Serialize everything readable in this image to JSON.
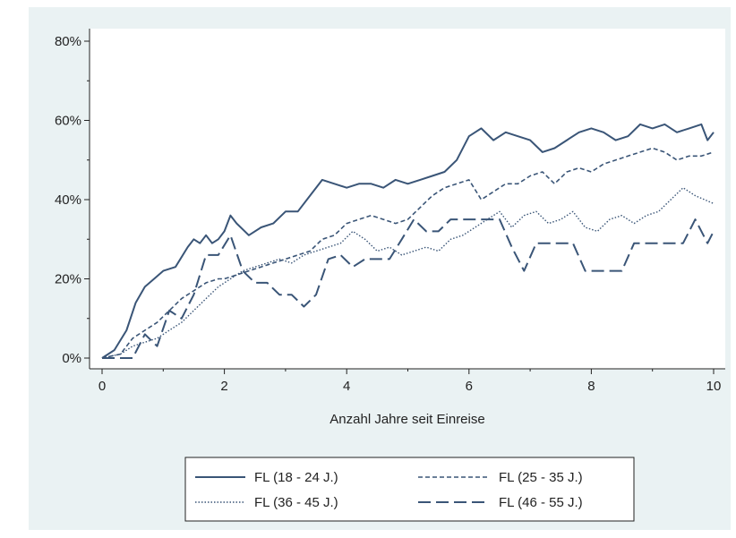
{
  "chart_data": {
    "type": "line",
    "title": "",
    "xlabel": "Anzahl Jahre seit Einreise",
    "ylabel": "",
    "xlim": [
      0,
      10
    ],
    "ylim": [
      0,
      80
    ],
    "x_ticks": [
      0,
      2,
      4,
      6,
      8,
      10
    ],
    "y_ticks": [
      0,
      20,
      40,
      60,
      80
    ],
    "x_tick_labels": [
      "0",
      "2",
      "4",
      "6",
      "8",
      "10"
    ],
    "y_tick_labels": [
      "0%",
      "20%",
      "40%",
      "60%",
      "80%"
    ],
    "grid": false,
    "legend_position": "bottom",
    "series": [
      {
        "name": "FL (18 - 24 J.)",
        "style": "solid",
        "color": "#3a5577",
        "x": [
          0,
          0.2,
          0.4,
          0.55,
          0.7,
          0.85,
          1.0,
          1.2,
          1.4,
          1.5,
          1.6,
          1.7,
          1.8,
          1.9,
          2.0,
          2.1,
          2.2,
          2.4,
          2.6,
          2.8,
          3.0,
          3.2,
          3.4,
          3.6,
          3.8,
          4.0,
          4.2,
          4.4,
          4.6,
          4.8,
          5.0,
          5.2,
          5.4,
          5.6,
          5.8,
          6.0,
          6.1,
          6.2,
          6.4,
          6.6,
          6.8,
          7.0,
          7.2,
          7.4,
          7.6,
          7.8,
          8.0,
          8.2,
          8.4,
          8.6,
          8.8,
          9.0,
          9.2,
          9.4,
          9.6,
          9.8,
          9.9,
          10.0
        ],
        "y": [
          0,
          2,
          7,
          14,
          18,
          20,
          22,
          23,
          28,
          30,
          29,
          31,
          29,
          30,
          32,
          36,
          34,
          31,
          33,
          34,
          37,
          37,
          41,
          45,
          44,
          43,
          44,
          44,
          43,
          45,
          44,
          45,
          46,
          47,
          50,
          56,
          57,
          58,
          55,
          57,
          56,
          55,
          52,
          53,
          55,
          57,
          58,
          57,
          55,
          56,
          59,
          58,
          59,
          57,
          58,
          59,
          55,
          57
        ]
      },
      {
        "name": "FL (25 - 35 J.)",
        "style": "short-dash",
        "color": "#3a5577",
        "x": [
          0,
          0.3,
          0.5,
          0.7,
          0.9,
          1.1,
          1.3,
          1.5,
          1.7,
          1.9,
          2.0,
          2.2,
          2.4,
          2.6,
          2.8,
          3.0,
          3.2,
          3.4,
          3.6,
          3.8,
          4.0,
          4.2,
          4.4,
          4.6,
          4.8,
          5.0,
          5.2,
          5.4,
          5.6,
          5.8,
          6.0,
          6.2,
          6.4,
          6.6,
          6.8,
          7.0,
          7.2,
          7.4,
          7.6,
          7.8,
          8.0,
          8.2,
          8.4,
          8.6,
          8.8,
          9.0,
          9.2,
          9.4,
          9.6,
          9.8,
          10.0
        ],
        "y": [
          0,
          1,
          5,
          7,
          9,
          12,
          15,
          17,
          19,
          20,
          20,
          21,
          22,
          23,
          24,
          25,
          26,
          27,
          30,
          31,
          34,
          35,
          36,
          35,
          34,
          35,
          38,
          41,
          43,
          44,
          45,
          40,
          42,
          44,
          44,
          46,
          47,
          44,
          47,
          48,
          47,
          49,
          50,
          51,
          52,
          53,
          52,
          50,
          51,
          51,
          52
        ]
      },
      {
        "name": "FL (36 - 45 J.)",
        "style": "dotted",
        "color": "#3a5577",
        "x": [
          0,
          0.3,
          0.5,
          0.7,
          0.9,
          1.1,
          1.3,
          1.5,
          1.7,
          1.9,
          2.1,
          2.3,
          2.5,
          2.7,
          2.9,
          3.1,
          3.3,
          3.5,
          3.7,
          3.9,
          4.1,
          4.3,
          4.5,
          4.7,
          4.9,
          5.1,
          5.3,
          5.5,
          5.7,
          5.9,
          6.1,
          6.3,
          6.5,
          6.7,
          6.9,
          7.1,
          7.3,
          7.5,
          7.7,
          7.9,
          8.1,
          8.3,
          8.5,
          8.7,
          8.9,
          9.1,
          9.3,
          9.5,
          9.7,
          10.0
        ],
        "y": [
          0,
          1,
          3,
          4,
          5,
          7,
          9,
          12,
          15,
          18,
          20,
          22,
          23,
          24,
          25,
          24,
          26,
          27,
          28,
          29,
          32,
          30,
          27,
          28,
          26,
          27,
          28,
          27,
          30,
          31,
          33,
          35,
          37,
          33,
          36,
          37,
          34,
          35,
          37,
          33,
          32,
          35,
          36,
          34,
          36,
          37,
          40,
          43,
          41,
          39
        ]
      },
      {
        "name": "FL (46 - 55 J.)",
        "style": "long-dash",
        "color": "#3a5577",
        "x": [
          0,
          0.3,
          0.5,
          0.7,
          0.9,
          1.1,
          1.3,
          1.5,
          1.7,
          1.9,
          2.1,
          2.3,
          2.5,
          2.7,
          2.9,
          3.1,
          3.3,
          3.5,
          3.7,
          3.9,
          4.1,
          4.3,
          4.5,
          4.7,
          4.9,
          5.1,
          5.3,
          5.5,
          5.7,
          5.9,
          6.1,
          6.3,
          6.5,
          6.7,
          6.9,
          7.1,
          7.3,
          7.5,
          7.7,
          7.9,
          8.1,
          8.3,
          8.5,
          8.7,
          8.9,
          9.1,
          9.3,
          9.5,
          9.7,
          9.9,
          10.0
        ],
        "y": [
          0,
          0,
          0,
          6,
          3,
          12,
          10,
          16,
          26,
          26,
          31,
          22,
          19,
          19,
          16,
          16,
          13,
          16,
          25,
          26,
          23,
          25,
          25,
          25,
          30,
          35,
          32,
          32,
          35,
          35,
          35,
          35,
          35,
          28,
          22,
          29,
          29,
          29,
          29,
          22,
          22,
          22,
          22,
          29,
          29,
          29,
          29,
          29,
          35,
          29,
          32
        ]
      }
    ]
  }
}
